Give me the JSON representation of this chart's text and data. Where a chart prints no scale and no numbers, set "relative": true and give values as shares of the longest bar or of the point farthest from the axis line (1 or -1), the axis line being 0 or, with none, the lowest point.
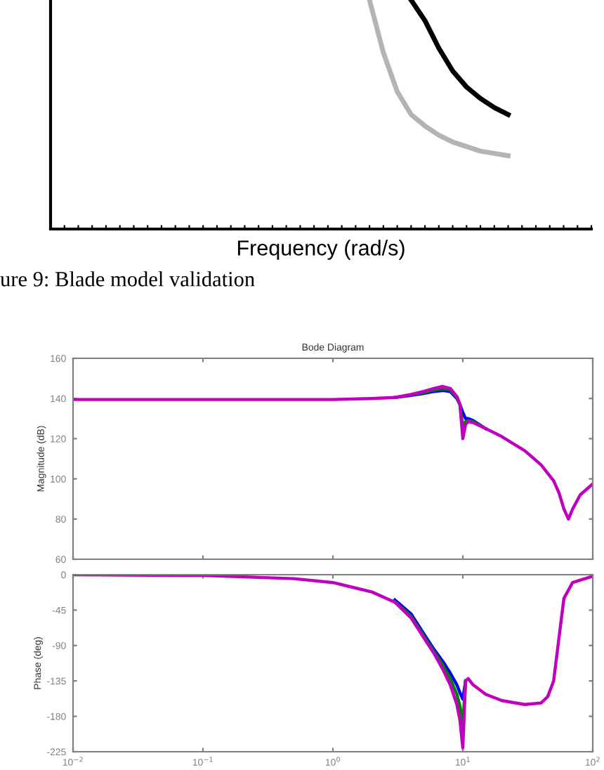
{
  "chart_data": [
    {
      "type": "line",
      "xlabel": "Frequency (rad/s)",
      "annotations": [
        "ure 9: Blade model validation"
      ],
      "relative": true,
      "grid": false,
      "legend": false,
      "categories": [
        null,
        null,
        null,
        null,
        null,
        null,
        null,
        null,
        null,
        null,
        null,
        null,
        null,
        null,
        null,
        null,
        null,
        null,
        null,
        null,
        null,
        null,
        null,
        null,
        null,
        null,
        null,
        null,
        null,
        null,
        null,
        null,
        null,
        null,
        null,
        null,
        null,
        null,
        null,
        null
      ],
      "series": [
        {
          "color": "#b4b4b4",
          "values": [
            null,
            null,
            null,
            null,
            null,
            null,
            null,
            null,
            null,
            null,
            null,
            null,
            null,
            null,
            null,
            null,
            null,
            null,
            null,
            null,
            null,
            null,
            null,
            1.0,
            0.77,
            0.6,
            0.5,
            0.45,
            0.41,
            0.38,
            0.36,
            0.34,
            0.33,
            0.32,
            null,
            null,
            null,
            null,
            null,
            null
          ]
        },
        {
          "color": "#000000",
          "values": [
            null,
            null,
            null,
            null,
            null,
            null,
            null,
            null,
            null,
            null,
            null,
            null,
            null,
            null,
            null,
            null,
            null,
            null,
            null,
            null,
            null,
            null,
            null,
            null,
            null,
            null,
            1.0,
            0.91,
            0.79,
            0.69,
            0.62,
            0.57,
            0.53,
            0.5,
            null,
            null,
            null,
            null,
            null,
            null
          ]
        }
      ]
    },
    {
      "type": "line",
      "title": "Bode Diagram",
      "ylabel": "Magnitude (dB)",
      "log": "x",
      "grid": false,
      "legend": false,
      "tick_labels": "y",
      "xlim": [
        0.01,
        100
      ],
      "xticks": [
        {
          "value": 0.01,
          "label": null
        },
        {
          "value": 0.1,
          "label": null
        },
        {
          "value": 1,
          "label": null
        },
        {
          "value": 10,
          "label": null
        },
        {
          "value": 100,
          "label": null
        }
      ],
      "ylim": [
        60,
        160
      ],
      "yticks": [
        60,
        80,
        100,
        120,
        140,
        160
      ],
      "x": [
        0.01,
        0.1,
        0.5,
        1,
        2,
        3,
        4,
        5,
        6,
        7,
        8,
        9,
        9.5,
        10,
        10.5,
        11,
        12,
        15,
        20,
        30,
        40,
        50,
        55,
        60,
        65,
        70,
        80,
        100
      ],
      "series": [
        {
          "color": "#0000ff",
          "values": [
            null,
            null,
            null,
            null,
            null,
            140.5,
            141.5,
            142.5,
            143.5,
            144,
            143.5,
            140,
            137,
            133,
            130,
            130,
            129,
            125,
            null,
            null,
            null,
            null,
            null,
            null,
            null,
            null,
            null,
            null
          ]
        },
        {
          "color": "#008000",
          "values": [
            null,
            null,
            null,
            null,
            null,
            null,
            141.8,
            143,
            144.2,
            145,
            144.3,
            140.5,
            137,
            126,
            128.5,
            129,
            128.5,
            125,
            null,
            null,
            null,
            null,
            null,
            null,
            null,
            null,
            null,
            null
          ]
        },
        {
          "color": "#bf00bf",
          "values": [
            139.5,
            139.5,
            139.5,
            139.5,
            140,
            140.5,
            142,
            143.5,
            145,
            146,
            145,
            141,
            137,
            120,
            127,
            128.5,
            128,
            125,
            121,
            114,
            107,
            99,
            93,
            85,
            80,
            85,
            92,
            97.5
          ]
        }
      ]
    },
    {
      "type": "line",
      "xlabel": null,
      "ylabel": "Phase (deg)",
      "log": "x",
      "grid": false,
      "legend": false,
      "xlim": [
        0.01,
        100
      ],
      "xticks": [
        {
          "value": 0.01,
          "label": "10$^{−2}$"
        },
        {
          "value": 0.1,
          "label": "10$^{−1}$"
        },
        {
          "value": 1,
          "label": "10$^{0}$"
        },
        {
          "value": 10,
          "label": "10$^{1}$"
        },
        {
          "value": 100,
          "label": "10$^{2}$"
        }
      ],
      "ylim": [
        -225,
        0
      ],
      "yticks": [
        -225,
        -180,
        -135,
        -90,
        -45,
        0
      ],
      "x": [
        0.01,
        0.1,
        0.5,
        1,
        2,
        3,
        4,
        5,
        6,
        7,
        8,
        9,
        9.5,
        10,
        10.5,
        11,
        12,
        15,
        20,
        30,
        40,
        45,
        50,
        55,
        60,
        70,
        100
      ],
      "series": [
        {
          "color": "#0000ff",
          "values": [
            null,
            null,
            null,
            null,
            null,
            -32,
            -50,
            -75,
            -95,
            -110,
            -125,
            -140,
            -150,
            -158,
            -135,
            null,
            null,
            null,
            null,
            null,
            null,
            null,
            null,
            null,
            null,
            null,
            null
          ]
        },
        {
          "color": "#008000",
          "values": [
            null,
            null,
            null,
            null,
            null,
            -34,
            -53,
            -78,
            -98,
            -115,
            -132,
            -152,
            -167,
            -190,
            -135,
            null,
            null,
            null,
            null,
            null,
            null,
            null,
            null,
            null,
            null,
            null,
            null
          ]
        },
        {
          "color": "#bf00bf",
          "values": [
            0,
            -1,
            -5,
            -10,
            -22,
            -35,
            -55,
            -80,
            -100,
            -120,
            -140,
            -165,
            -185,
            -220,
            -135,
            -132,
            -140,
            -152,
            -160,
            -165,
            -163,
            -155,
            -135,
            -80,
            -30,
            -10,
            -2
          ]
        }
      ]
    }
  ]
}
